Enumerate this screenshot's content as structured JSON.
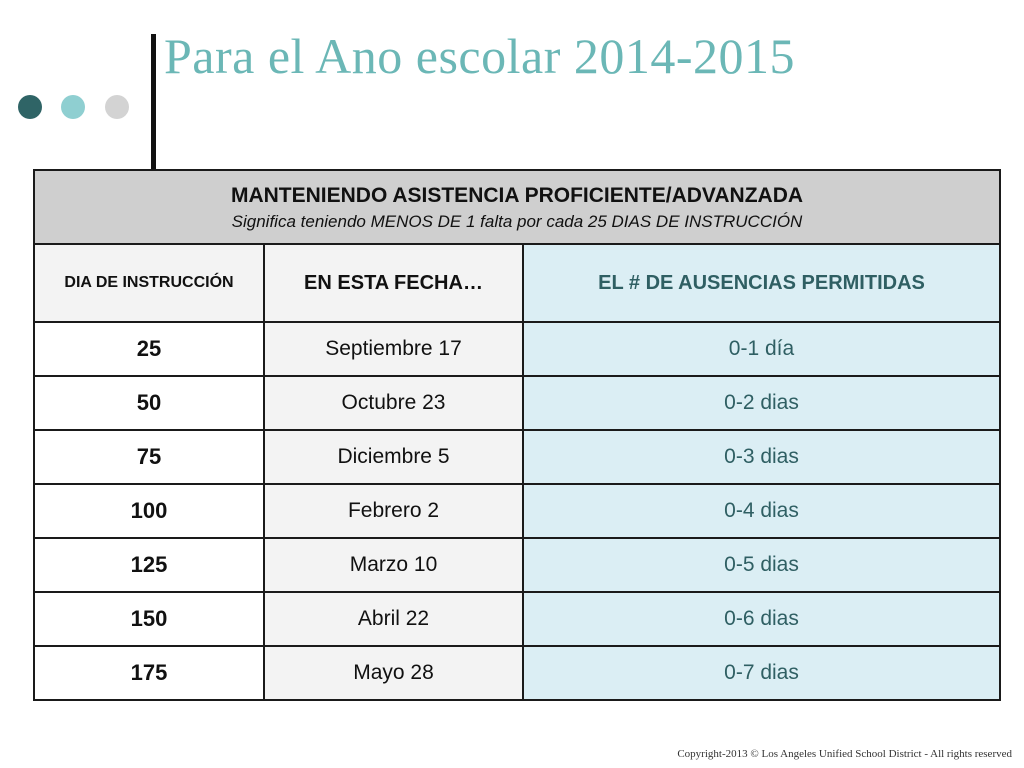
{
  "title": "Para el Ano escolar 2014-2015",
  "colors": {
    "title": "#6bb7b6",
    "dot_dark": "#2f6466",
    "dot_light": "#8fcfd1",
    "dot_gray": "#d3d3d3",
    "header_bg": "#cfcfcf",
    "absence_bg": "#dbeef4"
  },
  "table": {
    "heading": "MANTENIENDO ASISTENCIA PROFICIENTE/ADVANZADA",
    "subheading": "Significa teniendo MENOS DE 1 falta por cada 25 DIAS DE INSTRUCCIÓN",
    "columns": [
      "DIA DE INSTRUCCIÓN",
      "EN ESTA FECHA…",
      "EL # DE AUSENCIAS PERMITIDAS"
    ],
    "rows": [
      {
        "day": "25",
        "date": "Septiembre 17",
        "absences": "0-1 día"
      },
      {
        "day": "50",
        "date": "Octubre 23",
        "absences": "0-2 dias"
      },
      {
        "day": "75",
        "date": "Diciembre 5",
        "absences": "0-3 dias"
      },
      {
        "day": "100",
        "date": "Febrero 2",
        "absences": "0-4 dias"
      },
      {
        "day": "125",
        "date": "Marzo 10",
        "absences": "0-5 dias"
      },
      {
        "day": "150",
        "date": "Abril 22",
        "absences": "0-6 dias"
      },
      {
        "day": "175",
        "date": "Mayo 28",
        "absences": "0-7 dias"
      }
    ]
  },
  "footer": {
    "copyright": "Copyright-2013 © Los Angeles Unified School District - All rights reserved"
  }
}
